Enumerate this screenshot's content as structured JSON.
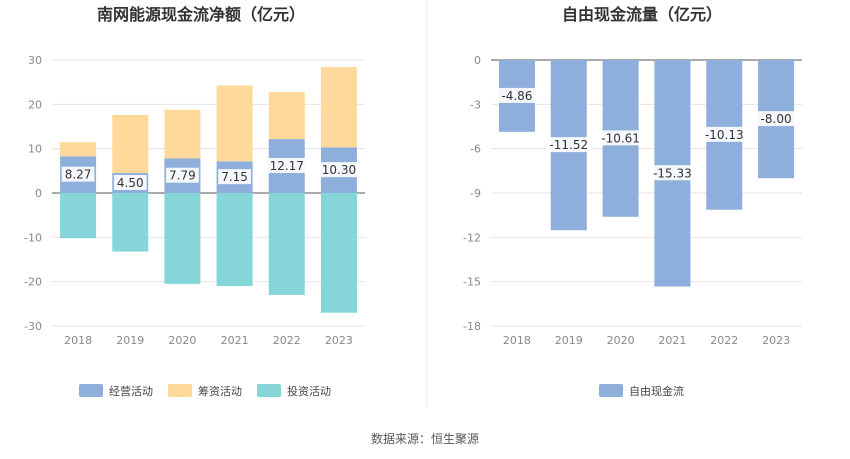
{
  "source_text": "数据来源：恒生聚源",
  "colors": {
    "operating": "#8eaedb",
    "financing": "#ffd99b",
    "investing": "#86d5d8",
    "fcf": "#8eaedb",
    "label_bg": "#ffffff"
  },
  "chart_data": [
    {
      "type": "bar",
      "stacked": true,
      "title": "南网能源现金流净额（亿元）",
      "categories": [
        "2018",
        "2019",
        "2020",
        "2021",
        "2022",
        "2023"
      ],
      "ylim": [
        -30,
        30
      ],
      "yticks": [
        30,
        20,
        10,
        0,
        -10,
        -20,
        -30
      ],
      "grid": true,
      "legend_position": "bottom",
      "series": [
        {
          "name": "经营活动",
          "values": [
            8.27,
            4.5,
            7.79,
            7.15,
            12.17,
            10.3
          ],
          "show_labels": true
        },
        {
          "name": "筹资活动",
          "values": [
            3.2,
            13.1,
            11.0,
            17.1,
            10.6,
            18.1
          ],
          "show_labels": false
        },
        {
          "name": "投资活动",
          "values": [
            -10.2,
            -13.2,
            -20.5,
            -21.0,
            -23.0,
            -27.0
          ],
          "show_labels": false
        }
      ],
      "value_labels": [
        "8.27",
        "4.50",
        "7.79",
        "7.15",
        "12.17",
        "10.30"
      ]
    },
    {
      "type": "bar",
      "stacked": false,
      "title": "自由现金流量（亿元）",
      "categories": [
        "2018",
        "2019",
        "2020",
        "2021",
        "2022",
        "2023"
      ],
      "ylim": [
        -18,
        0
      ],
      "yticks": [
        0,
        -3,
        -6,
        -9,
        -12,
        -15,
        -18
      ],
      "grid": true,
      "legend_position": "bottom",
      "series": [
        {
          "name": "自由现金流",
          "values": [
            -4.86,
            -11.52,
            -10.61,
            -15.33,
            -10.13,
            -8.0
          ],
          "show_labels": true
        }
      ],
      "value_labels": [
        "-4.86",
        "-11.52",
        "-10.61",
        "-15.33",
        "-10.13",
        "-8.00"
      ]
    }
  ]
}
